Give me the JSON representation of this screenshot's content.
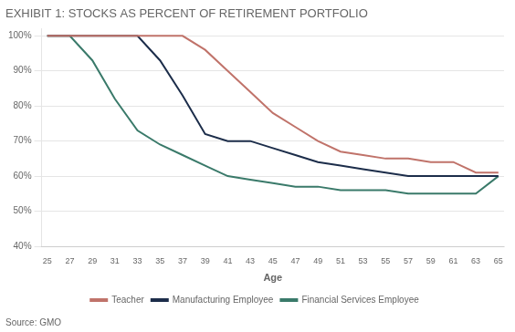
{
  "chart_data": {
    "type": "line",
    "title": "EXHIBIT 1: STOCKS AS PERCENT OF RETIREMENT PORTFOLIO",
    "x_label": "Age",
    "annotations": [
      "Source: GMO"
    ],
    "x": [
      25,
      27,
      29,
      31,
      33,
      35,
      37,
      39,
      41,
      43,
      45,
      47,
      49,
      51,
      53,
      55,
      57,
      59,
      61,
      63,
      65
    ],
    "series": [
      {
        "name": "Teacher",
        "color": "#c0736a",
        "values": [
          1.0,
          1.0,
          1.0,
          1.0,
          1.0,
          1.0,
          1.0,
          0.96,
          0.9,
          0.84,
          0.78,
          0.74,
          0.7,
          0.67,
          0.66,
          0.65,
          0.65,
          0.64,
          0.64,
          0.61,
          0.61
        ]
      },
      {
        "name": "Manufacturing Employee",
        "color": "#1c2d4a",
        "values": [
          1.0,
          1.0,
          1.0,
          1.0,
          1.0,
          0.93,
          0.83,
          0.72,
          0.7,
          0.7,
          0.68,
          0.66,
          0.64,
          0.63,
          0.62,
          0.61,
          0.6,
          0.6,
          0.6,
          0.6,
          0.6
        ]
      },
      {
        "name": "Financial Services Employee",
        "color": "#3a7a6a",
        "values": [
          1.0,
          1.0,
          0.93,
          0.82,
          0.73,
          0.69,
          0.66,
          0.63,
          0.6,
          0.59,
          0.58,
          0.57,
          0.57,
          0.56,
          0.56,
          0.56,
          0.55,
          0.55,
          0.55,
          0.55,
          0.6
        ]
      }
    ],
    "xlim": [
      24.5,
      65.5
    ],
    "xticks": [
      25,
      27,
      29,
      31,
      33,
      35,
      37,
      39,
      41,
      43,
      45,
      47,
      49,
      51,
      53,
      55,
      57,
      59,
      61,
      63,
      65
    ],
    "ylim": [
      0.4,
      1.02
    ],
    "yticks": [
      {
        "value": 0.4,
        "label": "40%"
      },
      {
        "value": 0.5,
        "label": "50%"
      },
      {
        "value": 0.6,
        "label": "60%"
      },
      {
        "value": 0.7,
        "label": "70%"
      },
      {
        "value": 0.8,
        "label": "80%"
      },
      {
        "value": 0.9,
        "label": "90%"
      },
      {
        "value": 1.0,
        "label": "100%"
      }
    ],
    "grid": "y",
    "legend": "bottom"
  }
}
